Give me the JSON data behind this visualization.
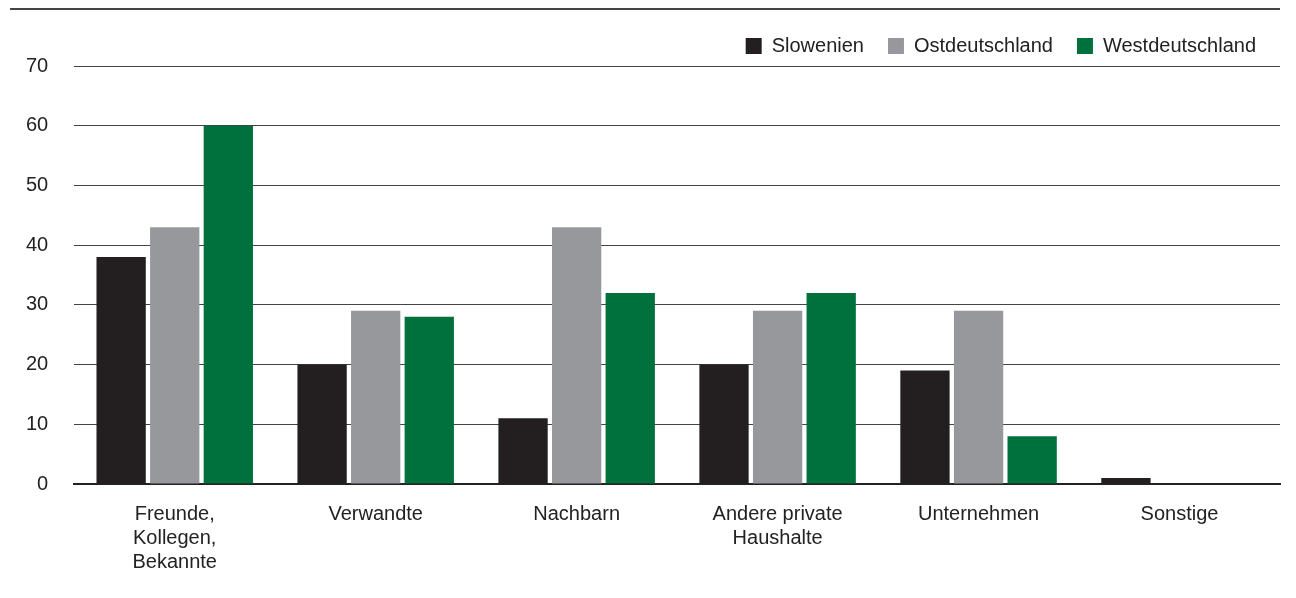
{
  "chart_data": {
    "type": "bar",
    "categories": [
      "Freunde, Kollegen, Bekannte",
      "Verwandte",
      "Nachbarn",
      "Andere private Haushalte",
      "Unternehmen",
      "Sonstige"
    ],
    "series": [
      {
        "name": "Slowenien",
        "color": "#231f20",
        "values": [
          38,
          20,
          11,
          20,
          19,
          1
        ]
      },
      {
        "name": "Ostdeutschland",
        "color": "#97989b",
        "values": [
          43,
          29,
          43,
          29,
          29,
          0
        ]
      },
      {
        "name": "Westdeutschland",
        "color": "#00703c",
        "values": [
          60,
          28,
          32,
          32,
          8,
          0
        ]
      }
    ],
    "ylim": [
      0,
      70
    ],
    "yticks": [
      0,
      10,
      20,
      30,
      40,
      50,
      60,
      70
    ],
    "grid": "y",
    "legend": "top right"
  }
}
